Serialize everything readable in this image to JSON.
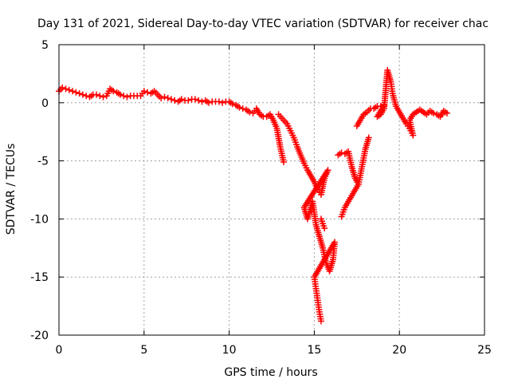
{
  "chart_data": {
    "type": "scatter",
    "title": "Day 131 of 2021, Sidereal Day-to-day VTEC variation (SDTVAR) for receiver chac",
    "xlabel": "GPS time / hours",
    "ylabel": "SDTVAR / TECUs",
    "xlim": [
      0,
      25
    ],
    "ylim": [
      -20,
      5
    ],
    "xticks": [
      "0",
      "5",
      "10",
      "15",
      "20",
      "25"
    ],
    "yticks": [
      "5",
      "0",
      "-5",
      "-10",
      "-15",
      "-20"
    ],
    "grid": true,
    "marker": "+",
    "series_color": "#ff0000",
    "series": [
      {
        "name": "SDTVAR",
        "points": [
          [
            0.0,
            1.0
          ],
          [
            0.2,
            1.3
          ],
          [
            0.4,
            1.2
          ],
          [
            0.6,
            1.1
          ],
          [
            0.8,
            1.0
          ],
          [
            1.0,
            0.9
          ],
          [
            1.2,
            0.8
          ],
          [
            1.4,
            0.7
          ],
          [
            1.6,
            0.6
          ],
          [
            1.8,
            0.5
          ],
          [
            2.0,
            0.7
          ],
          [
            2.2,
            0.7
          ],
          [
            2.4,
            0.6
          ],
          [
            2.6,
            0.5
          ],
          [
            2.8,
            0.6
          ],
          [
            3.0,
            1.2
          ],
          [
            3.2,
            1.0
          ],
          [
            3.4,
            0.9
          ],
          [
            3.6,
            0.7
          ],
          [
            3.8,
            0.6
          ],
          [
            4.0,
            0.5
          ],
          [
            4.2,
            0.6
          ],
          [
            4.4,
            0.6
          ],
          [
            4.6,
            0.6
          ],
          [
            4.8,
            0.6
          ],
          [
            5.0,
            1.0
          ],
          [
            5.2,
            0.9
          ],
          [
            5.4,
            0.8
          ],
          [
            5.6,
            1.0
          ],
          [
            5.8,
            0.7
          ],
          [
            6.0,
            0.4
          ],
          [
            6.2,
            0.5
          ],
          [
            6.4,
            0.4
          ],
          [
            6.6,
            0.3
          ],
          [
            6.8,
            0.2
          ],
          [
            7.0,
            0.1
          ],
          [
            7.2,
            0.3
          ],
          [
            7.4,
            0.2
          ],
          [
            7.6,
            0.2
          ],
          [
            7.8,
            0.3
          ],
          [
            8.0,
            0.3
          ],
          [
            8.2,
            0.2
          ],
          [
            8.4,
            0.1
          ],
          [
            8.6,
            0.2
          ],
          [
            8.8,
            0.0
          ],
          [
            9.0,
            0.1
          ],
          [
            9.2,
            0.1
          ],
          [
            9.4,
            0.1
          ],
          [
            9.6,
            0.0
          ],
          [
            9.8,
            0.1
          ],
          [
            10.0,
            0.1
          ],
          [
            10.2,
            -0.1
          ],
          [
            10.4,
            -0.2
          ],
          [
            10.6,
            -0.4
          ],
          [
            10.8,
            -0.5
          ],
          [
            11.0,
            -0.6
          ],
          [
            11.2,
            -0.8
          ],
          [
            11.4,
            -0.9
          ],
          [
            11.6,
            -0.5
          ],
          [
            11.8,
            -1.0
          ],
          [
            12.0,
            -1.2
          ],
          [
            12.2,
            -1.2
          ],
          [
            12.4,
            -1.0
          ],
          [
            12.6,
            -1.5
          ],
          [
            12.8,
            -2.2
          ],
          [
            13.0,
            -3.8
          ],
          [
            13.2,
            -5.1
          ],
          [
            12.9,
            -1.0
          ],
          [
            13.2,
            -1.5
          ],
          [
            13.4,
            -1.8
          ],
          [
            13.6,
            -2.4
          ],
          [
            13.8,
            -3.0
          ],
          [
            14.0,
            -3.8
          ],
          [
            14.2,
            -4.5
          ],
          [
            14.4,
            -5.2
          ],
          [
            14.6,
            -5.8
          ],
          [
            14.8,
            -6.3
          ],
          [
            15.0,
            -6.8
          ],
          [
            15.2,
            -7.5
          ],
          [
            15.4,
            -7.9
          ],
          [
            15.6,
            -6.5
          ],
          [
            15.8,
            -5.8
          ],
          [
            14.4,
            -9.0
          ],
          [
            14.6,
            -10.0
          ],
          [
            14.9,
            -8.5
          ],
          [
            15.1,
            -10.5
          ],
          [
            15.3,
            -11.5
          ],
          [
            15.5,
            -12.5
          ],
          [
            15.7,
            -13.8
          ],
          [
            15.9,
            -14.5
          ],
          [
            16.1,
            -13.5
          ],
          [
            16.2,
            -12.0
          ],
          [
            15.0,
            -15.0
          ],
          [
            15.1,
            -16.0
          ],
          [
            15.2,
            -17.0
          ],
          [
            15.3,
            -18.0
          ],
          [
            15.4,
            -18.8
          ],
          [
            15.4,
            -10.0
          ],
          [
            15.6,
            -10.8
          ],
          [
            16.4,
            -4.5
          ],
          [
            16.6,
            -4.3
          ],
          [
            16.8,
            -4.4
          ],
          [
            17.0,
            -4.2
          ],
          [
            17.2,
            -5.5
          ],
          [
            17.4,
            -6.5
          ],
          [
            17.6,
            -7.0
          ],
          [
            17.8,
            -5.5
          ],
          [
            18.0,
            -4.0
          ],
          [
            18.2,
            -3.0
          ],
          [
            16.6,
            -9.8
          ],
          [
            16.8,
            -9.0
          ],
          [
            17.0,
            -8.5
          ],
          [
            17.2,
            -8.0
          ],
          [
            17.4,
            -7.5
          ],
          [
            17.6,
            -7.0
          ],
          [
            17.5,
            -2.0
          ],
          [
            17.7,
            -1.5
          ],
          [
            17.9,
            -1.0
          ],
          [
            18.1,
            -0.8
          ],
          [
            18.3,
            -0.5
          ],
          [
            18.5,
            -0.5
          ],
          [
            18.7,
            -0.3
          ],
          [
            18.9,
            -0.3
          ],
          [
            19.1,
            -0.2
          ],
          [
            18.7,
            -1.2
          ],
          [
            18.9,
            -1.0
          ],
          [
            19.1,
            -0.5
          ],
          [
            19.3,
            2.8
          ],
          [
            19.5,
            1.8
          ],
          [
            19.6,
            0.8
          ],
          [
            19.8,
            -0.3
          ],
          [
            20.0,
            -0.8
          ],
          [
            20.2,
            -1.3
          ],
          [
            20.4,
            -1.8
          ],
          [
            20.6,
            -2.2
          ],
          [
            20.8,
            -2.8
          ],
          [
            20.6,
            -1.5
          ],
          [
            20.8,
            -1.0
          ],
          [
            21.0,
            -0.8
          ],
          [
            21.2,
            -0.6
          ],
          [
            21.4,
            -0.8
          ],
          [
            21.6,
            -1.0
          ],
          [
            21.8,
            -0.7
          ],
          [
            22.0,
            -0.9
          ],
          [
            22.2,
            -1.0
          ],
          [
            22.4,
            -1.2
          ],
          [
            22.6,
            -0.7
          ],
          [
            22.8,
            -0.9
          ]
        ]
      }
    ]
  }
}
